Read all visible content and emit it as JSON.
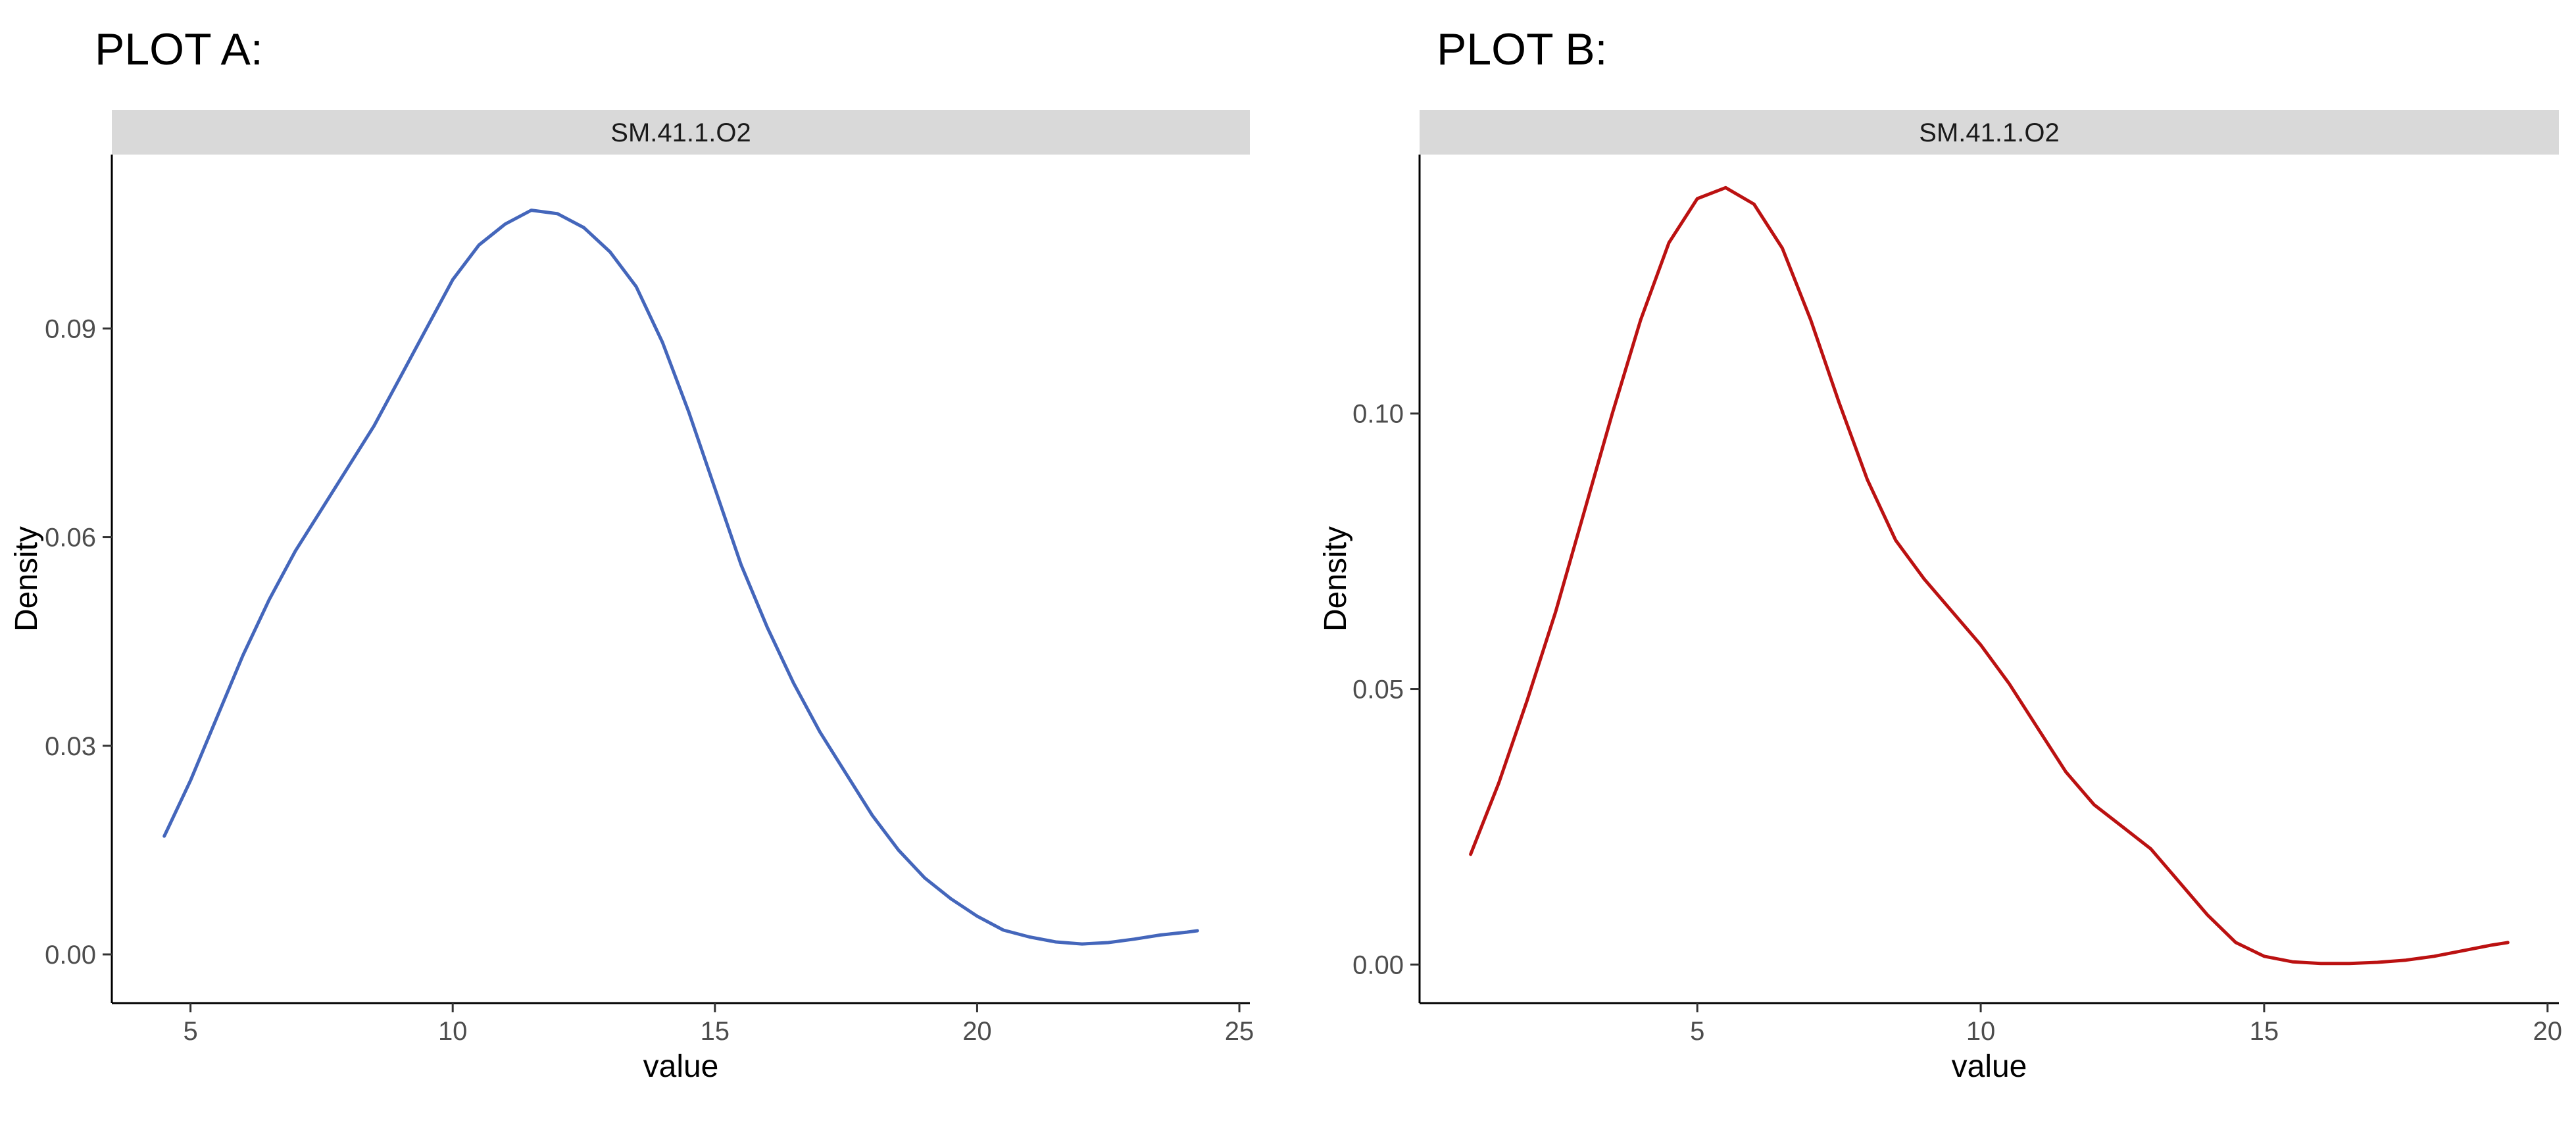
{
  "headings": {
    "plot_a": "PLOT A:",
    "plot_b": "PLOT B:"
  },
  "chart_data": [
    {
      "type": "line",
      "panel_title": "SM.41.1.O2",
      "xlabel": "value",
      "ylabel": "Density",
      "xlim": [
        3.5,
        25.2
      ],
      "ylim": [
        -0.007,
        0.115
      ],
      "xticks": [
        "5",
        "10",
        "15",
        "20",
        "25"
      ],
      "yticks": [
        "0.00",
        "0.03",
        "0.06",
        "0.09"
      ],
      "grid": false,
      "line_color": "#4466bb",
      "series": [
        {
          "x": [
            4.5,
            5,
            5.5,
            6,
            6.5,
            7,
            7.5,
            8,
            8.5,
            9,
            9.5,
            10,
            10.5,
            11,
            11.5,
            12,
            12.5,
            13,
            13.5,
            14,
            14.5,
            15,
            15.5,
            16,
            16.5,
            17,
            17.5,
            18,
            18.5,
            19,
            19.5,
            20,
            20.5,
            21,
            21.5,
            22,
            22.5,
            23,
            23.5,
            24,
            24.2
          ],
          "y": [
            0.017,
            0.025,
            0.034,
            0.043,
            0.051,
            0.058,
            0.064,
            0.07,
            0.076,
            0.083,
            0.09,
            0.097,
            0.102,
            0.105,
            0.107,
            0.1065,
            0.1045,
            0.101,
            0.096,
            0.088,
            0.078,
            0.067,
            0.056,
            0.047,
            0.039,
            0.032,
            0.026,
            0.02,
            0.015,
            0.011,
            0.008,
            0.0055,
            0.0035,
            0.0025,
            0.0018,
            0.0015,
            0.0017,
            0.0022,
            0.0028,
            0.0032,
            0.0034
          ]
        }
      ]
    },
    {
      "type": "line",
      "panel_title": "SM.41.1.O2",
      "xlabel": "value",
      "ylabel": "Density",
      "xlim": [
        0.1,
        20.2
      ],
      "ylim": [
        -0.007,
        0.147
      ],
      "xticks": [
        "5",
        "10",
        "15",
        "20"
      ],
      "yticks": [
        "0.00",
        "0.05",
        "0.10"
      ],
      "grid": false,
      "line_color": "#bb1111",
      "series": [
        {
          "x": [
            1,
            1.5,
            2,
            2.5,
            3,
            3.5,
            4,
            4.5,
            5,
            5.5,
            6,
            6.5,
            7,
            7.5,
            8,
            8.5,
            9,
            9.5,
            10,
            10.5,
            11,
            11.5,
            12,
            12.5,
            13,
            13.5,
            14,
            14.5,
            15,
            15.5,
            16,
            16.5,
            17,
            17.5,
            18,
            18.5,
            19,
            19.3
          ],
          "y": [
            0.02,
            0.033,
            0.048,
            0.064,
            0.082,
            0.1,
            0.117,
            0.131,
            0.139,
            0.141,
            0.138,
            0.13,
            0.117,
            0.102,
            0.088,
            0.077,
            0.07,
            0.064,
            0.058,
            0.051,
            0.043,
            0.035,
            0.029,
            0.025,
            0.021,
            0.015,
            0.009,
            0.004,
            0.0015,
            0.0005,
            0.0002,
            0.0002,
            0.0004,
            0.0008,
            0.0015,
            0.0025,
            0.0035,
            0.004
          ]
        }
      ]
    }
  ]
}
